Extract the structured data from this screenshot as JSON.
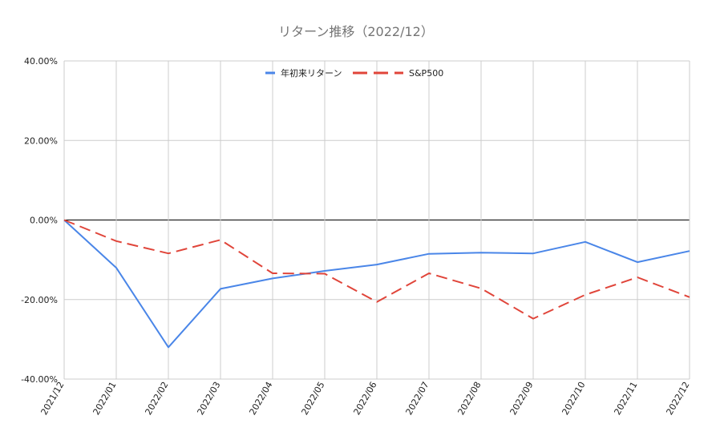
{
  "chart_data": {
    "type": "line",
    "title": "リターン推移（2022/12）",
    "xlabel": "",
    "ylabel": "",
    "categories": [
      "2021/12",
      "2022/01",
      "2022/02",
      "2022/03",
      "2022/04",
      "2022/05",
      "2022/06",
      "2022/07",
      "2022/08",
      "2022/09",
      "2022/10",
      "2022/11",
      "2022/12"
    ],
    "ylim": [
      -40,
      40
    ],
    "y_ticks": [
      40,
      20,
      0,
      -20,
      -40
    ],
    "y_tick_labels": [
      "40.00%",
      "20.00%",
      "0.00%",
      "-20.00%",
      "-40.00%"
    ],
    "grid": true,
    "legend_position": "top-center",
    "series": [
      {
        "name": "年初来リターン",
        "color": "#4a86e8",
        "style": "solid",
        "values": [
          0,
          -12,
          -32,
          -17.3,
          -14.7,
          -12.8,
          -11.2,
          -8.5,
          -8.2,
          -8.4,
          -5.5,
          -10.6,
          -7.8
        ]
      },
      {
        "name": "S&P500",
        "color": "#e0453a",
        "style": "dashed",
        "values": [
          0,
          -5.3,
          -8.4,
          -5,
          -13.4,
          -13.5,
          -20.6,
          -13.4,
          -17.2,
          -24.8,
          -18.8,
          -14.4,
          -19.4
        ]
      }
    ]
  }
}
